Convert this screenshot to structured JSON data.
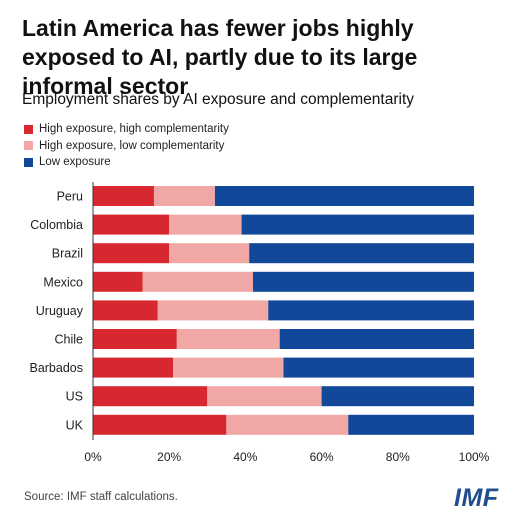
{
  "title": "Latin America has fewer jobs highly exposed to AI, partly due to its large informal sector",
  "subtitle": "Employment shares by AI exposure and complementarity",
  "source": "Source: IMF staff calculations.",
  "logo_text": "IMF",
  "chart_data": {
    "type": "bar",
    "orientation": "horizontal",
    "stacked": true,
    "categories": [
      "Peru",
      "Colombia",
      "Brazil",
      "Mexico",
      "Uruguay",
      "Chile",
      "Barbados",
      "US",
      "UK"
    ],
    "series": [
      {
        "name": "High exposure, high complementarity",
        "color": "#d7282f",
        "values": [
          16,
          20,
          20,
          13,
          17,
          22,
          21,
          30,
          35
        ]
      },
      {
        "name": "High exposure, low complementarity",
        "color": "#f1a7a5",
        "values": [
          16,
          19,
          21,
          29,
          29,
          27,
          29,
          30,
          32
        ]
      },
      {
        "name": "Low exposure",
        "color": "#12489a",
        "values": [
          68,
          61,
          59,
          58,
          54,
          51,
          50,
          40,
          33
        ]
      }
    ],
    "xlim": [
      0,
      100
    ],
    "x_ticks": [
      "0%",
      "20%",
      "40%",
      "60%",
      "80%",
      "100%"
    ],
    "grid": false,
    "legend_position": "top-left"
  }
}
